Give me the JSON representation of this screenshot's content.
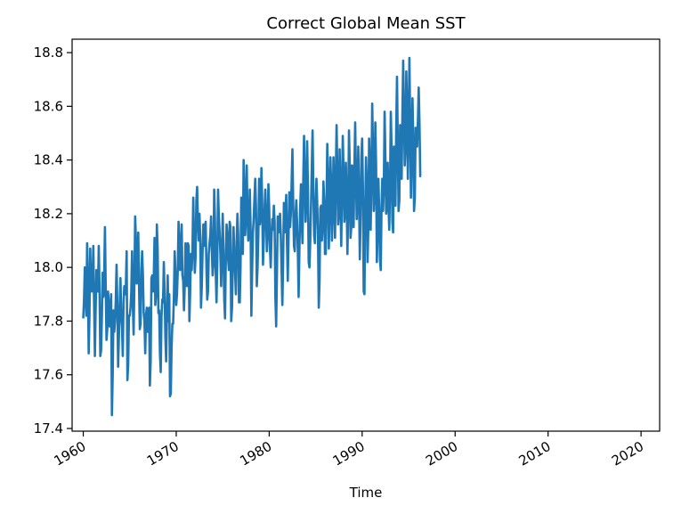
{
  "chart_data": {
    "type": "line",
    "title": "Correct Global Mean SST",
    "xlabel": "Time",
    "ylabel": "",
    "x_ticks": [
      "1960",
      "1970",
      "1980",
      "1990",
      "2000",
      "2010",
      "2020"
    ],
    "y_ticks": [
      "17.4",
      "17.6",
      "17.8",
      "18.0",
      "18.2",
      "18.4",
      "18.6",
      "18.8"
    ],
    "xlim": [
      1958.8,
      2022.0
    ],
    "ylim": [
      17.39,
      18.85
    ],
    "grid": false,
    "line_color": "#1f77b4",
    "series": [
      {
        "x_start": 1960.0,
        "x_step": 0.08333,
        "values": [
          17.81,
          17.88,
          18.0,
          17.9,
          17.82,
          18.09,
          17.96,
          17.68,
          17.82,
          18.07,
          17.92,
          17.91,
          17.96,
          18.08,
          17.87,
          17.67,
          17.85,
          17.99,
          17.93,
          17.91,
          18.08,
          17.92,
          17.67,
          17.69,
          17.81,
          17.98,
          17.89,
          17.97,
          18.15,
          17.92,
          17.73,
          17.77,
          17.91,
          17.86,
          17.78,
          17.83,
          17.9,
          17.45,
          17.6,
          17.84,
          17.76,
          17.8,
          17.88,
          18.01,
          17.86,
          17.63,
          17.74,
          17.85,
          17.96,
          17.82,
          17.78,
          17.67,
          17.87,
          17.93,
          17.9,
          17.93,
          18.06,
          17.58,
          17.64,
          17.82,
          17.82,
          17.85,
          17.91,
          18.06,
          17.86,
          17.75,
          17.95,
          18.19,
          18.1,
          17.94,
          17.97,
          18.13,
          17.93,
          17.77,
          17.79,
          17.99,
          18.06,
          17.97,
          17.83,
          17.8,
          17.68,
          17.82,
          17.85,
          17.76,
          17.76,
          17.85,
          17.56,
          17.65,
          17.96,
          17.97,
          17.91,
          17.96,
          18.11,
          17.86,
          17.9,
          18.16,
          18.07,
          17.83,
          17.84,
          17.68,
          17.61,
          17.82,
          17.88,
          17.87,
          18.02,
          17.91,
          17.74,
          17.65,
          17.82,
          17.97,
          17.8,
          17.9,
          17.52,
          17.53,
          17.7,
          17.79,
          17.79,
          17.89,
          18.06,
          17.98,
          17.86,
          17.9,
          17.99,
          18.17,
          18.1,
          17.99,
          18.02,
          18.16,
          17.97,
          17.95,
          17.84,
          17.93,
          18.09,
          17.98,
          17.93,
          18.09,
          18.08,
          17.8,
          17.91,
          18.05,
          17.99,
          18.07,
          18.26,
          18.1,
          17.98,
          18.04,
          18.25,
          18.3,
          18.17,
          18.1,
          18.2,
          18.11,
          17.85,
          17.93,
          18.06,
          18.16,
          18.08,
          18.15,
          18.17,
          18.0,
          17.88,
          17.91,
          18.05,
          18.09,
          18.12,
          18.19,
          18.06,
          17.97,
          18.01,
          18.29,
          18.18,
          17.98,
          17.87,
          18.02,
          18.29,
          18.19,
          18.13,
          18.05,
          17.93,
          18.05,
          18.2,
          18.06,
          17.88,
          17.81,
          18.03,
          18.16,
          18.12,
          18.03,
          17.99,
          18.17,
          18.15,
          17.8,
          17.85,
          18.0,
          18.15,
          18.05,
          17.98,
          17.9,
          18.1,
          18.2,
          18.12,
          17.87,
          17.87,
          18.0,
          18.26,
          18.09,
          18.05,
          18.4,
          18.29,
          18.12,
          18.2,
          18.38,
          18.2,
          18.1,
          18.15,
          18.29,
          18.15,
          17.82,
          17.99,
          18.13,
          18.18,
          18.26,
          18.33,
          18.22,
          17.93,
          18.0,
          18.12,
          18.33,
          18.16,
          18.2,
          18.37,
          18.24,
          18.01,
          18.1,
          18.21,
          18.29,
          18.19,
          18.06,
          18.12,
          18.31,
          18.22,
          18.07,
          18.0,
          18.11,
          18.18,
          18.14,
          18.23,
          18.17,
          17.89,
          17.78,
          17.98,
          18.19,
          18.13,
          18.16,
          18.2,
          18.12,
          17.99,
          17.86,
          18.02,
          18.24,
          18.13,
          18.2,
          18.27,
          18.09,
          17.95,
          18.11,
          18.28,
          18.15,
          18.2,
          18.32,
          18.44,
          18.24,
          18.08,
          18.06,
          18.19,
          18.25,
          18.17,
          18.06,
          17.89,
          18.06,
          18.22,
          18.31,
          18.17,
          18.09,
          18.32,
          18.49,
          18.33,
          18.17,
          18.26,
          18.47,
          18.3,
          18.02,
          18.0,
          18.1,
          18.23,
          18.37,
          18.51,
          18.3,
          18.12,
          18.09,
          18.23,
          18.33,
          18.24,
          18.12,
          17.85,
          17.95,
          18.22,
          18.23,
          18.1,
          18.15,
          18.32,
          18.25,
          18.05,
          18.05,
          18.24,
          18.46,
          18.33,
          18.07,
          18.2,
          18.41,
          18.31,
          18.1,
          18.21,
          18.41,
          18.25,
          18.11,
          18.34,
          18.53,
          18.36,
          18.16,
          18.21,
          18.44,
          18.25,
          18.08,
          18.29,
          18.49,
          18.36,
          18.17,
          18.21,
          18.39,
          18.25,
          18.05,
          18.22,
          18.51,
          18.38,
          18.11,
          18.15,
          18.38,
          18.3,
          18.15,
          18.37,
          18.54,
          18.34,
          18.18,
          18.28,
          18.45,
          18.25,
          18.03,
          18.2,
          18.41,
          18.48,
          18.3,
          17.91,
          17.9,
          18.22,
          18.41,
          18.31,
          18.02,
          18.15,
          18.48,
          18.35,
          18.14,
          18.33,
          18.61,
          18.44,
          18.21,
          18.28,
          18.54,
          18.38,
          18.02,
          18.14,
          18.33,
          18.21,
          18.03,
          17.99,
          18.22,
          18.33,
          18.21,
          18.3,
          18.58,
          18.41,
          18.2,
          18.24,
          18.39,
          18.23,
          18.14,
          18.3,
          18.58,
          18.44,
          18.17,
          18.13,
          18.45,
          18.44,
          18.23,
          18.52,
          18.71,
          18.46,
          18.21,
          18.25,
          18.53,
          18.42,
          18.33,
          18.58,
          18.77,
          18.57,
          18.38,
          18.45,
          18.73,
          18.58,
          18.33,
          18.52,
          18.78,
          18.54,
          18.26,
          18.43,
          18.63,
          18.47,
          18.21,
          18.26,
          18.52,
          18.49,
          18.45,
          18.55,
          18.67,
          18.54,
          18.34,
          18.34
        ]
      }
    ]
  }
}
